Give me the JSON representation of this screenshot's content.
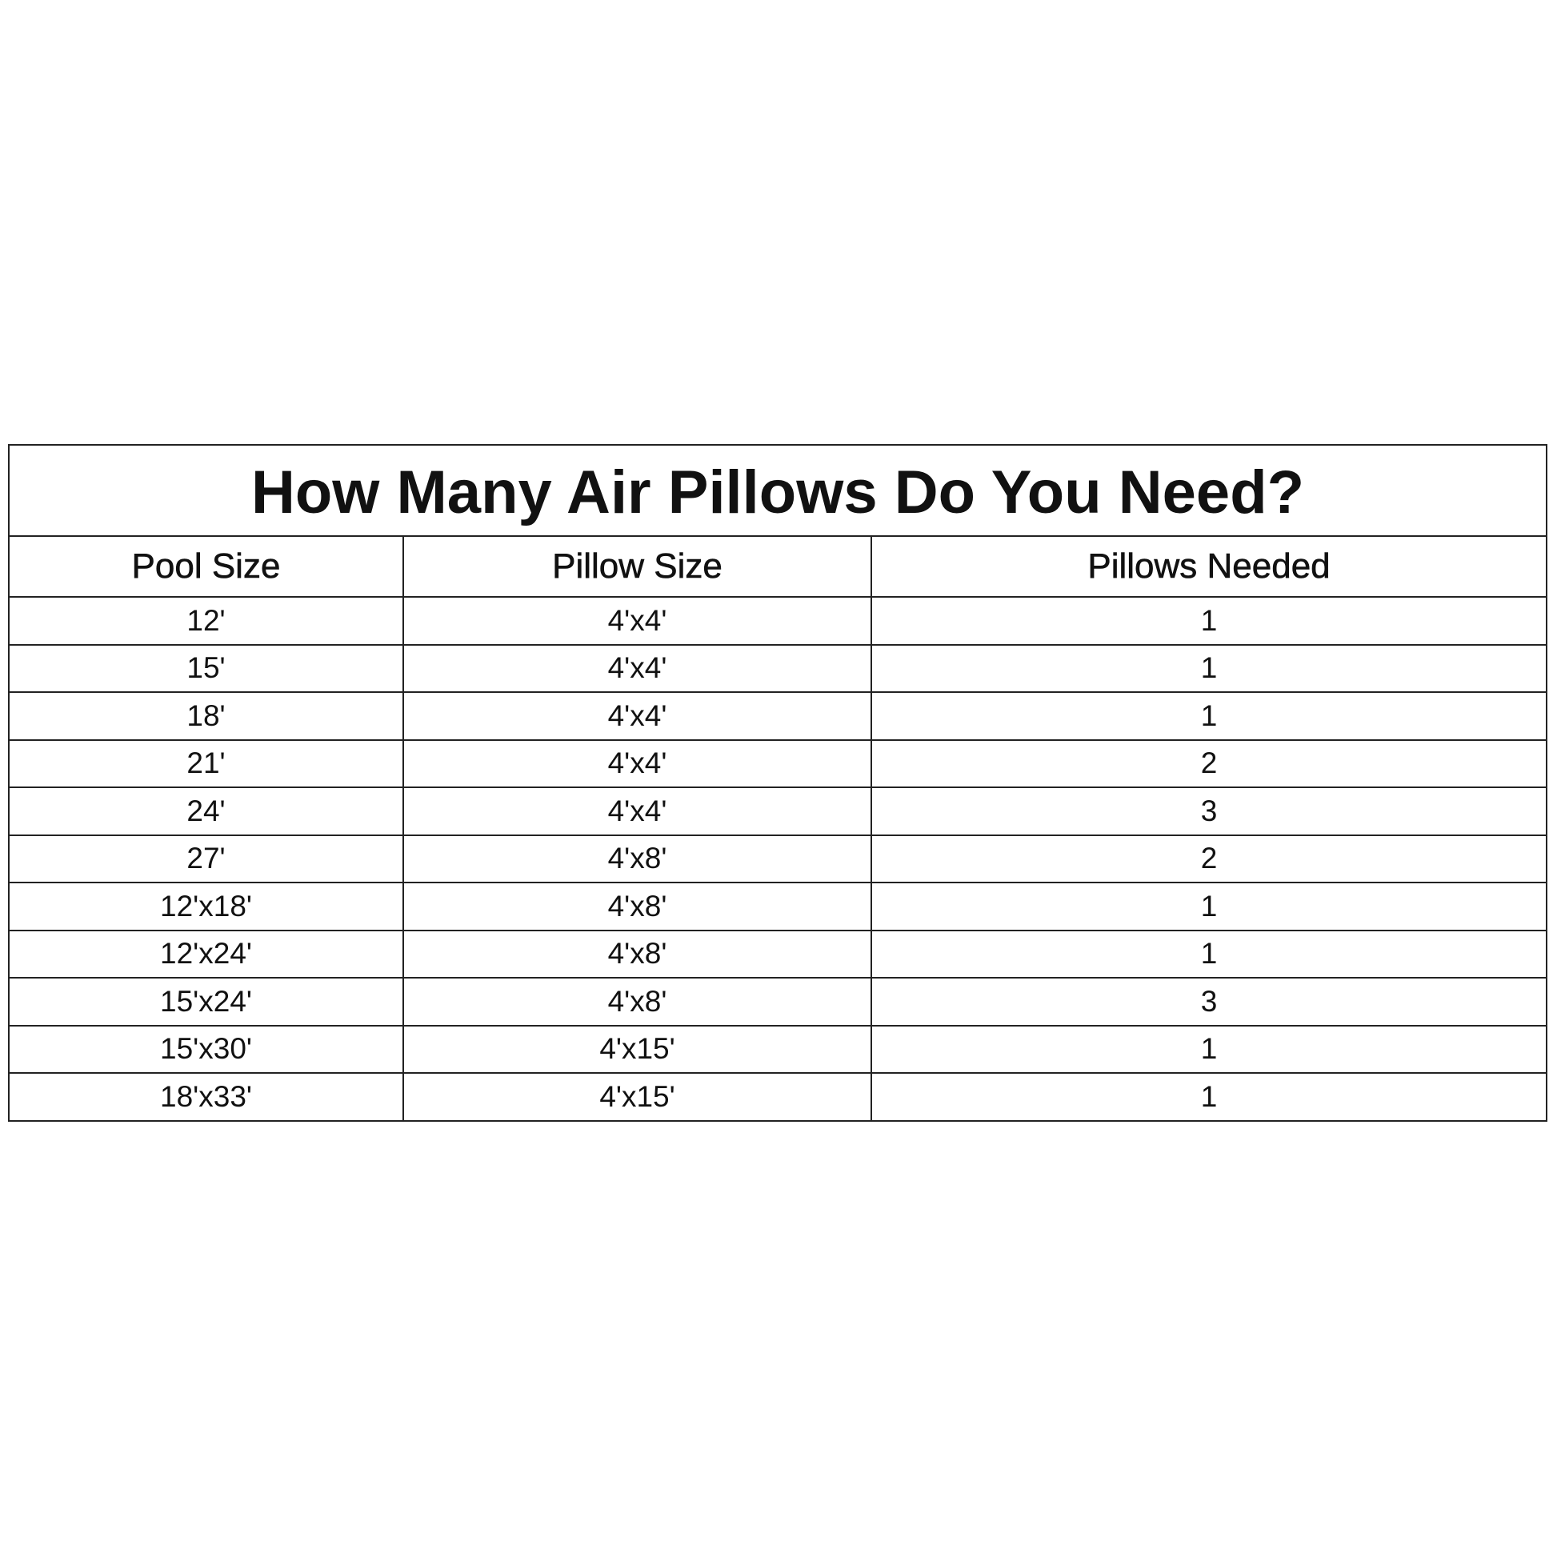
{
  "title": "How Many Air Pillows Do You Need?",
  "headers": [
    "Pool Size",
    "Pillow Size",
    "Pillows Needed"
  ],
  "rows": [
    [
      "12'",
      "4'x4'",
      "1"
    ],
    [
      "15'",
      "4'x4'",
      "1"
    ],
    [
      "18'",
      "4'x4'",
      "1"
    ],
    [
      "21'",
      "4'x4'",
      "2"
    ],
    [
      "24'",
      "4'x4'",
      "3"
    ],
    [
      "27'",
      "4'x8'",
      "2"
    ],
    [
      "12'x18'",
      "4'x8'",
      "1"
    ],
    [
      "12'x24'",
      "4'x8'",
      "1"
    ],
    [
      "15'x24'",
      "4'x8'",
      "3"
    ],
    [
      "15'x30'",
      "4'x15'",
      "1"
    ],
    [
      "18'x33'",
      "4'x15'",
      "1"
    ]
  ]
}
